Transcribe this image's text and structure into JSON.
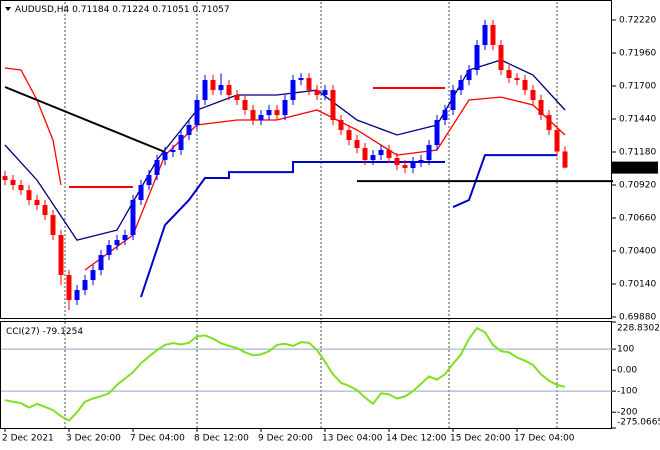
{
  "chart_data": [
    {
      "type": "candlestick",
      "title": "AUDUSD,H4",
      "categories": [
        "2 Dec 2021",
        null,
        null,
        null,
        null,
        null,
        null,
        null,
        "3 Dec 20:00",
        null,
        null,
        null,
        null,
        null,
        null,
        null,
        "7 Dec 04:00",
        null,
        null,
        null,
        null,
        null,
        null,
        null,
        "8 Dec 12:00",
        null,
        null,
        null,
        null,
        null,
        null,
        null,
        "9 Dec 20:00",
        null,
        null,
        null,
        null,
        null,
        null,
        null,
        "13 Dec 04:00",
        null,
        null,
        null,
        null,
        null,
        null,
        null,
        "14 Dec 12:00",
        null,
        null,
        null,
        null,
        null,
        null,
        null,
        "15 Dec 20:00",
        null,
        null,
        null,
        null,
        null,
        null,
        null,
        "17 Dec 04:00",
        null,
        null,
        null,
        null,
        null,
        null
      ],
      "candles": [
        [
          0.7099,
          0.7103,
          0.70919,
          0.70959
        ],
        [
          0.70959,
          0.70999,
          0.7088,
          0.7092
        ],
        [
          0.7092,
          0.7096,
          0.7084,
          0.7088
        ],
        [
          0.7088,
          0.7092,
          0.70762,
          0.70802
        ],
        [
          0.70802,
          0.70842,
          0.70722,
          0.70762
        ],
        [
          0.70762,
          0.70802,
          0.70643,
          0.70683
        ],
        [
          0.70683,
          0.70723,
          0.70486,
          0.70526
        ],
        [
          0.70526,
          0.70566,
          0.70131,
          0.70211
        ],
        [
          0.70211,
          0.70251,
          0.69934,
          0.70014
        ],
        [
          0.70014,
          0.70132,
          0.69974,
          0.70092
        ],
        [
          0.70092,
          0.70211,
          0.70052,
          0.70171
        ],
        [
          0.70171,
          0.7029,
          0.70131,
          0.7025
        ],
        [
          0.7025,
          0.70408,
          0.7021,
          0.70368
        ],
        [
          0.70368,
          0.70487,
          0.70328,
          0.70447
        ],
        [
          0.70447,
          0.70526,
          0.70407,
          0.70486
        ],
        [
          0.70486,
          0.70566,
          0.70446,
          0.70526
        ],
        [
          0.70526,
          0.70842,
          0.70486,
          0.70802
        ],
        [
          0.70802,
          0.7096,
          0.70762,
          0.7092
        ],
        [
          0.7092,
          0.71039,
          0.7088,
          0.70999
        ],
        [
          0.70999,
          0.71157,
          0.70959,
          0.71117
        ],
        [
          0.71117,
          0.7122,
          0.71077,
          0.7118
        ],
        [
          0.7118,
          0.71236,
          0.7114,
          0.71196
        ],
        [
          0.71196,
          0.71354,
          0.71156,
          0.71314
        ],
        [
          0.71314,
          0.71433,
          0.71274,
          0.71393
        ],
        [
          0.71393,
          0.7163,
          0.71353,
          0.7159
        ],
        [
          0.7159,
          0.71787,
          0.7155,
          0.71747
        ],
        [
          0.71747,
          0.71787,
          0.71628,
          0.71668
        ],
        [
          0.71668,
          0.718,
          0.71628,
          0.71708
        ],
        [
          0.71708,
          0.71748,
          0.71589,
          0.71629
        ],
        [
          0.71629,
          0.71669,
          0.7155,
          0.7159
        ],
        [
          0.7159,
          0.7163,
          0.71471,
          0.71511
        ],
        [
          0.71511,
          0.71551,
          0.71392,
          0.71432
        ],
        [
          0.71432,
          0.71511,
          0.71392,
          0.71471
        ],
        [
          0.71471,
          0.71551,
          0.71431,
          0.71511
        ],
        [
          0.71511,
          0.71551,
          0.71431,
          0.71471
        ],
        [
          0.71471,
          0.7163,
          0.71431,
          0.7159
        ],
        [
          0.7159,
          0.71787,
          0.7155,
          0.71747
        ],
        [
          0.71747,
          0.71803,
          0.71707,
          0.71763
        ],
        [
          0.71763,
          0.71803,
          0.71628,
          0.71668
        ],
        [
          0.71668,
          0.71708,
          0.71589,
          0.71629
        ],
        [
          0.71629,
          0.71708,
          0.71589,
          0.71668
        ],
        [
          0.71668,
          0.71708,
          0.71392,
          0.71432
        ],
        [
          0.71432,
          0.71472,
          0.71313,
          0.71353
        ],
        [
          0.71353,
          0.71393,
          0.71234,
          0.71274
        ],
        [
          0.71274,
          0.71314,
          0.71171,
          0.71211
        ],
        [
          0.71211,
          0.71251,
          0.71077,
          0.71117
        ],
        [
          0.71117,
          0.71196,
          0.71077,
          0.71156
        ],
        [
          0.71156,
          0.71236,
          0.71116,
          0.71196
        ],
        [
          0.71196,
          0.71236,
          0.71093,
          0.71133
        ],
        [
          0.71133,
          0.71173,
          0.71037,
          0.71077
        ],
        [
          0.71077,
          0.71117,
          0.71014,
          0.71054
        ],
        [
          0.71054,
          0.71141,
          0.71014,
          0.71101
        ],
        [
          0.71101,
          0.71157,
          0.71061,
          0.71117
        ],
        [
          0.71117,
          0.71275,
          0.71077,
          0.71235
        ],
        [
          0.71235,
          0.71472,
          0.71195,
          0.71432
        ],
        [
          0.71432,
          0.71551,
          0.71392,
          0.71511
        ],
        [
          0.71511,
          0.71708,
          0.71471,
          0.71668
        ],
        [
          0.71668,
          0.71787,
          0.71628,
          0.71747
        ],
        [
          0.71747,
          0.71866,
          0.71707,
          0.71826
        ],
        [
          0.71826,
          0.72063,
          0.71786,
          0.72023
        ],
        [
          0.72023,
          0.72221,
          0.71983,
          0.72181
        ],
        [
          0.72181,
          0.72221,
          0.71983,
          0.72023
        ],
        [
          0.72023,
          0.72063,
          0.71786,
          0.71826
        ],
        [
          0.71826,
          0.71866,
          0.71723,
          0.71763
        ],
        [
          0.71763,
          0.71803,
          0.71707,
          0.71747
        ],
        [
          0.71747,
          0.71787,
          0.71628,
          0.71668
        ],
        [
          0.71668,
          0.71708,
          0.7155,
          0.7159
        ],
        [
          0.7159,
          0.7163,
          0.71431,
          0.71471
        ],
        [
          0.71471,
          0.71511,
          0.71313,
          0.71353
        ],
        [
          0.71353,
          0.71393,
          0.71144,
          0.71184
        ],
        [
          0.71184,
          0.71224,
          0.71051,
          0.71057
        ]
      ],
      "up_color": "#0000ff",
      "down_color": "#ff0000",
      "ylim": [
        0.69872,
        0.72362
      ],
      "yticks": [
        {
          "value": 0.7222,
          "label": "0.72220"
        },
        {
          "value": 0.7196,
          "label": "0.71960"
        },
        {
          "value": 0.717,
          "label": "0.71700"
        },
        {
          "value": 0.7144,
          "label": "0.71440"
        },
        {
          "value": 0.7118,
          "label": "0.71180"
        },
        {
          "value": 0.7092,
          "label": "0.70920"
        },
        {
          "value": 0.7066,
          "label": "0.70660"
        },
        {
          "value": 0.704,
          "label": "0.70400"
        },
        {
          "value": 0.7014,
          "label": "0.70140"
        },
        {
          "value": 0.6988,
          "label": "0.69880"
        }
      ],
      "lines": [
        {
          "color": "#000080",
          "x": [
            0,
            4,
            9,
            14,
            19,
            24,
            29,
            34,
            39,
            44,
            49,
            54,
            58,
            62,
            66,
            70
          ],
          "values": [
            0.71235,
            0.70959,
            0.70486,
            0.70565,
            0.71117,
            0.71511,
            0.71629,
            0.71629,
            0.71668,
            0.71432,
            0.71314,
            0.71393,
            0.71826,
            0.71905,
            0.71787,
            0.71511
          ]
        },
        {
          "color": "#ff0000",
          "x": [
            0,
            2,
            4,
            6,
            7,
            8,
            10,
            16,
            20,
            24,
            29,
            34,
            39,
            44,
            49,
            54,
            58,
            62,
            66,
            70
          ],
          "values": [
            0.71842,
            0.71826,
            0.7159,
            0.71274,
            0.7092,
            null,
            0.7025,
            0.70526,
            0.71156,
            0.71393,
            0.71432,
            0.71432,
            0.71511,
            0.71353,
            0.71156,
            0.71196,
            0.7159,
            0.71613,
            0.7155,
            0.71314
          ]
        },
        {
          "color": "#0000cd",
          "x": [
            17,
            20,
            23,
            25,
            28,
            28,
            36,
            36,
            55,
            55.5,
            56,
            58,
            60,
            69
          ],
          "values": [
            0.70037,
            0.70605,
            0.70802,
            0.70975,
            0.70975,
            0.71022,
            0.71022,
            0.71101,
            0.71101,
            null,
            0.70746,
            0.70802,
            0.71156,
            0.71156
          ]
        }
      ],
      "drawings": [
        {
          "color": "#000000",
          "x": [
            0,
            20
          ],
          "values": [
            0.71692,
            0.7118
          ]
        },
        {
          "color": "#000000",
          "x": [
            44,
            76
          ],
          "values": [
            0.70951,
            0.70951
          ]
        },
        {
          "color": "#ff0000",
          "x": [
            8,
            16
          ],
          "values": [
            0.70904,
            0.70904
          ]
        },
        {
          "color": "#ff0000",
          "x": [
            46,
            55
          ],
          "values": [
            0.71684,
            0.71684
          ]
        }
      ],
      "separators": [
        7.5,
        24,
        39.5,
        55.5,
        69
      ]
    },
    {
      "type": "line",
      "title": "CCI(27)",
      "color": "#7fe020",
      "values": [
        -143,
        -150,
        -157,
        -178,
        -160,
        -175,
        -190,
        -219,
        -240,
        -200,
        -150,
        -135,
        -124,
        -110,
        -70,
        -40,
        -10,
        33,
        65,
        95,
        120,
        128,
        122,
        130,
        160,
        165,
        150,
        128,
        115,
        105,
        85,
        70,
        75,
        90,
        120,
        125,
        115,
        133,
        130,
        95,
        40,
        -20,
        -60,
        -75,
        -95,
        -130,
        -160,
        -110,
        -115,
        -135,
        -125,
        -100,
        -65,
        -30,
        -45,
        -20,
        30,
        75,
        150,
        200,
        180,
        120,
        90,
        85,
        60,
        45,
        25,
        -20,
        -50,
        -70,
        -79.1254
      ],
      "ylim": [
        -275.0665,
        228.8302
      ],
      "yticks": [
        228.8302,
        100,
        {
          "value": 0,
          "label": "0.00"
        },
        -100,
        -200,
        -275.0665
      ],
      "levels": [
        100,
        -100
      ]
    }
  ]
}
